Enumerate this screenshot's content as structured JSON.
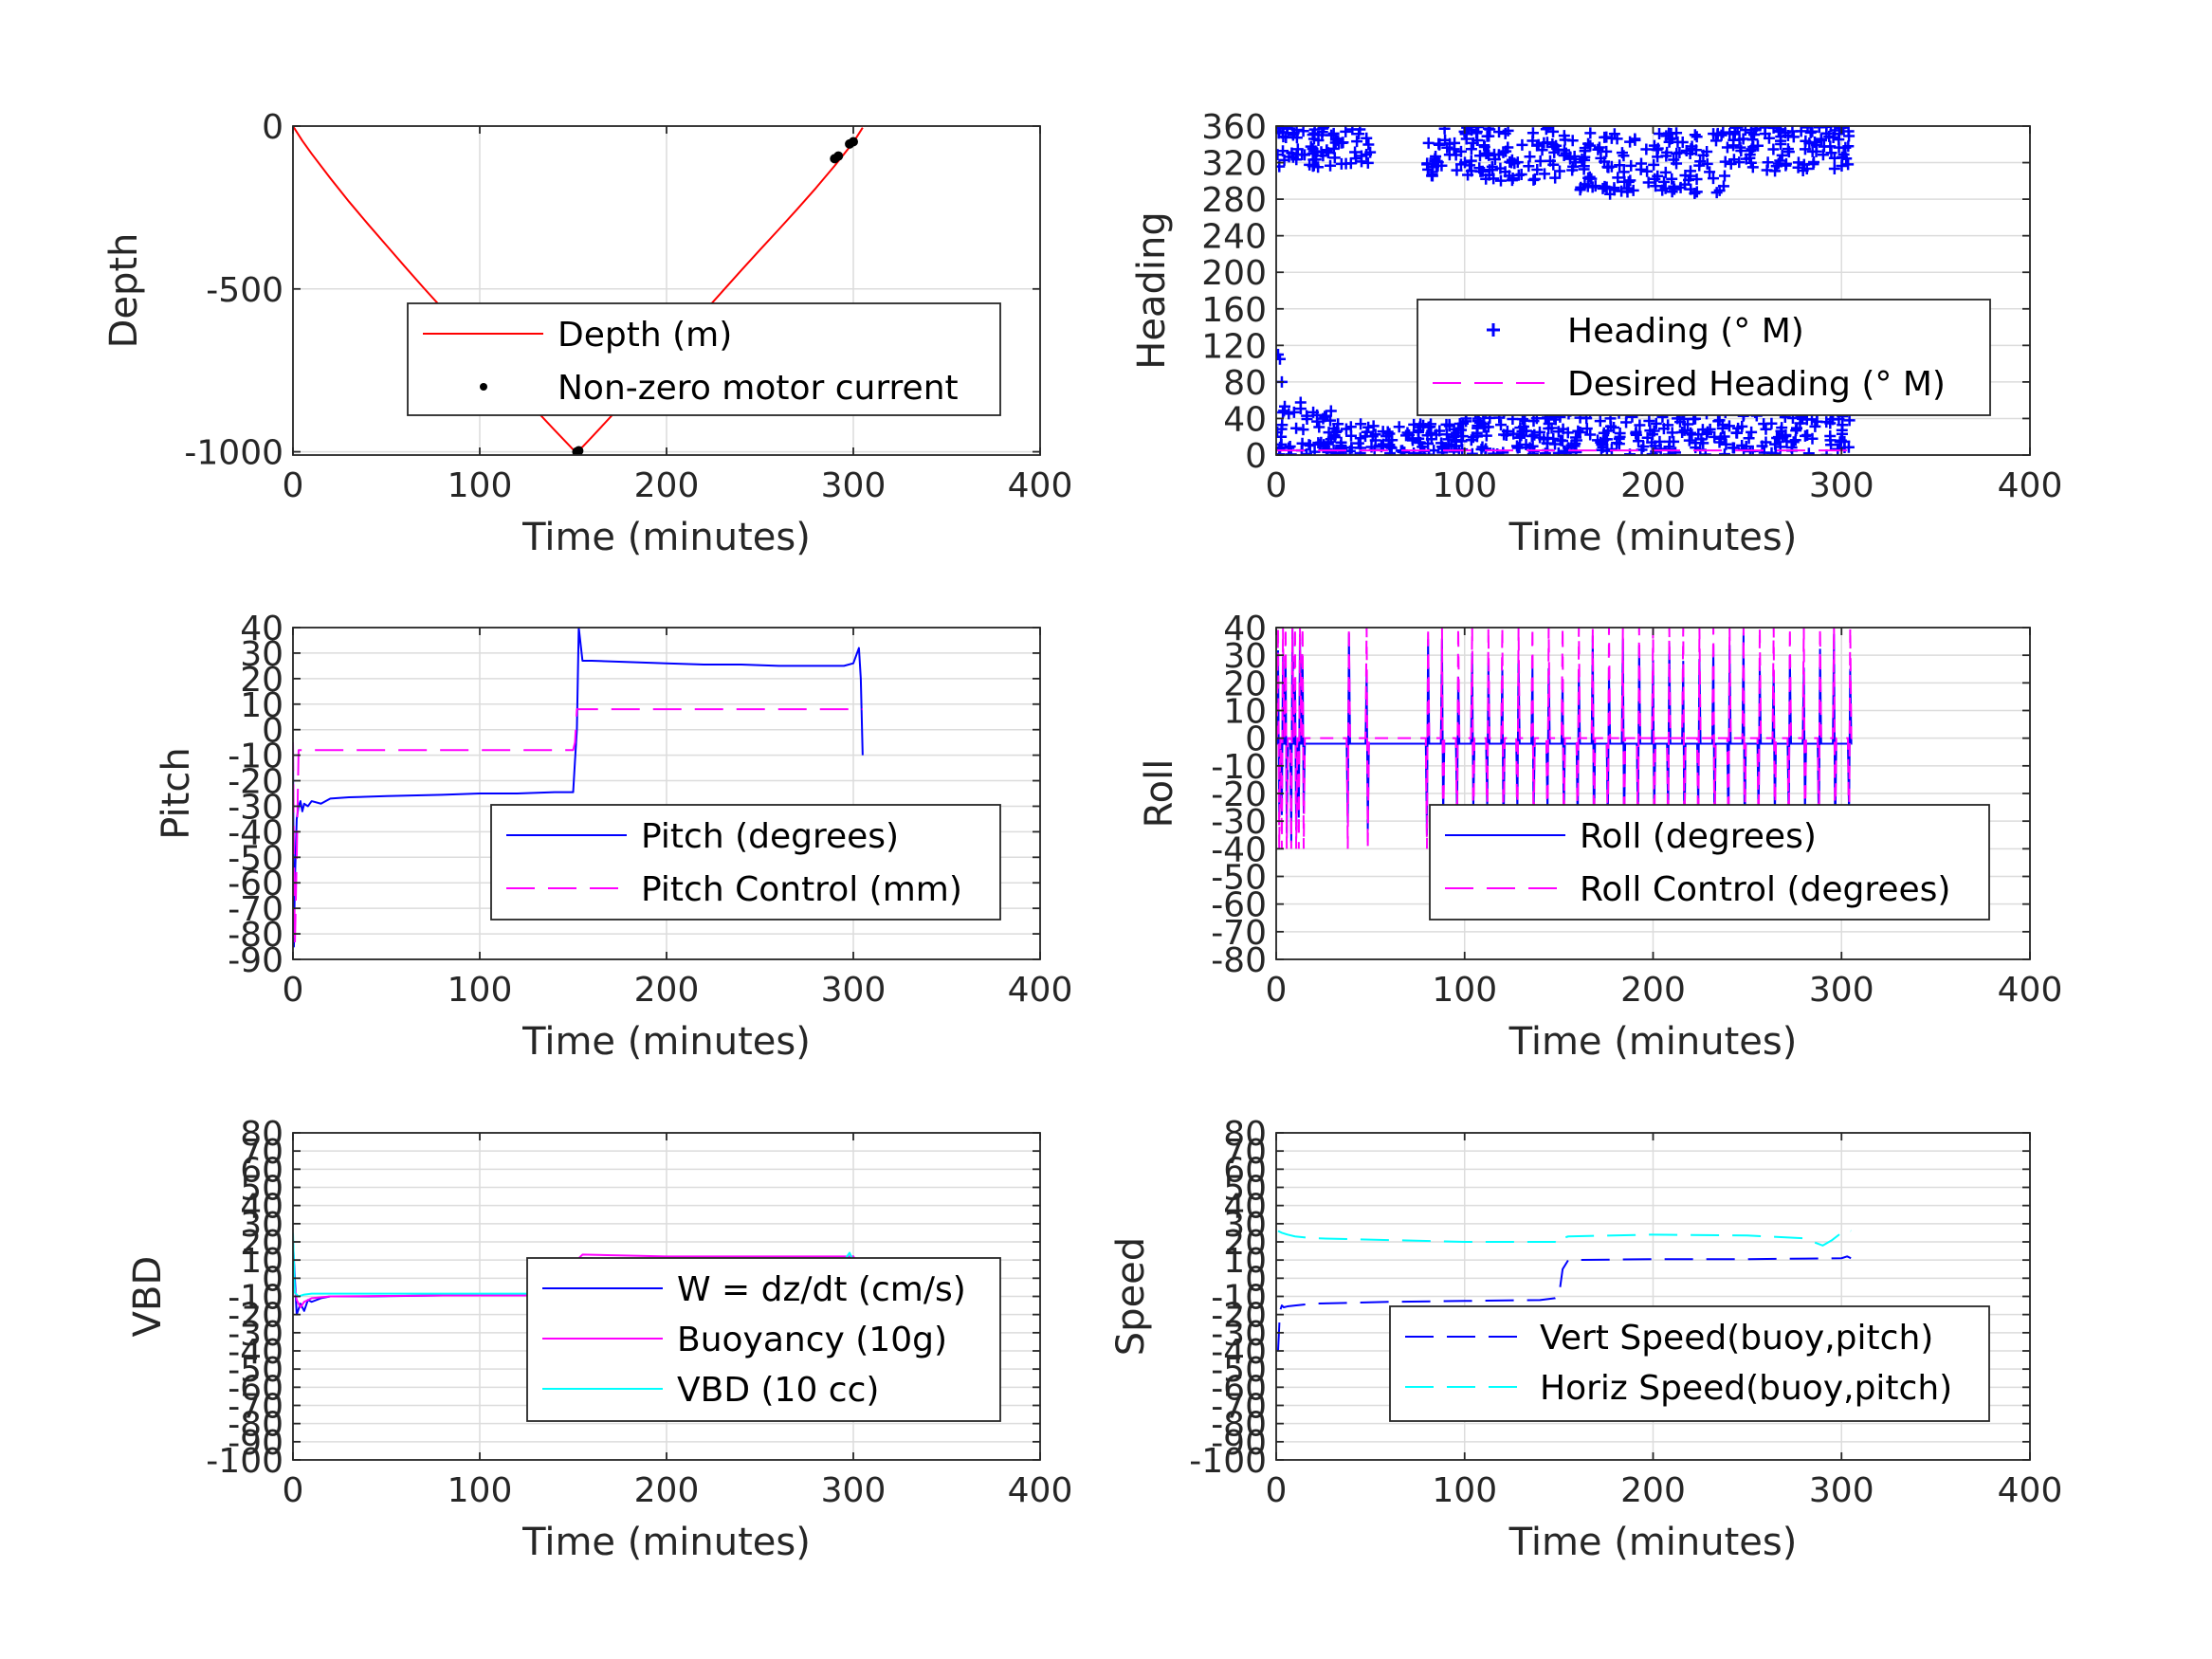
{
  "chart_data": [
    {
      "id": "depth",
      "type": "line",
      "xlabel": "Time (minutes)",
      "ylabel": "Depth",
      "xlim": [
        0,
        400
      ],
      "ylim": [
        -1010,
        0
      ],
      "xticks": [
        0,
        100,
        200,
        300,
        400
      ],
      "yticks": [
        0,
        -500,
        -1000
      ],
      "ytick_labels": [
        "0",
        "-500",
        "-1000"
      ],
      "grid": true,
      "legend_position": "center-right",
      "series": [
        {
          "name": "Depth (m)",
          "style": "solid",
          "color": "#ff0000",
          "x": [
            0,
            5,
            10,
            20,
            30,
            40,
            50,
            60,
            70,
            80,
            90,
            100,
            110,
            120,
            130,
            140,
            150,
            152,
            155,
            160,
            170,
            180,
            190,
            200,
            210,
            220,
            230,
            240,
            250,
            260,
            270,
            280,
            290,
            300,
            305
          ],
          "y": [
            0,
            -45,
            -85,
            -160,
            -232,
            -300,
            -366,
            -432,
            -497,
            -560,
            -623,
            -686,
            -748,
            -810,
            -872,
            -933,
            -993,
            -1000,
            -985,
            -955,
            -893,
            -829,
            -765,
            -700,
            -635,
            -571,
            -507,
            -443,
            -380,
            -318,
            -255,
            -190,
            -122,
            -50,
            -5
          ]
        },
        {
          "name": "Non-zero motor current",
          "style": "dots",
          "color": "#000000",
          "x": [
            152,
            153,
            290,
            292,
            298,
            300
          ],
          "y": [
            -1000,
            -997,
            -100,
            -92,
            -55,
            -48
          ]
        }
      ]
    },
    {
      "id": "heading",
      "type": "scatter",
      "xlabel": "Time (minutes)",
      "ylabel": "Heading",
      "xlim": [
        0,
        400
      ],
      "ylim": [
        0,
        360
      ],
      "xticks": [
        0,
        100,
        200,
        300,
        400
      ],
      "yticks": [
        0,
        40,
        80,
        120,
        160,
        200,
        240,
        280,
        320,
        360
      ],
      "ytick_labels": [
        "0",
        "40",
        "80",
        "120",
        "160",
        "200",
        "240",
        "280",
        "320",
        "360"
      ],
      "grid": true,
      "legend_position": "center-right",
      "series": [
        {
          "name": "Heading (° M)",
          "style": "plus",
          "color": "#0000ff",
          "bands": [
            {
              "x": [
                0,
                50
              ],
              "y": [
                315,
                360
              ]
            },
            {
              "x": [
                80,
                160
              ],
              "y": [
                300,
                360
              ]
            },
            {
              "x": [
                160,
                240
              ],
              "y": [
                285,
                355
              ]
            },
            {
              "x": [
                240,
                305
              ],
              "y": [
                310,
                360
              ]
            },
            {
              "x": [
                0,
                30
              ],
              "y": [
                0,
                60
              ]
            },
            {
              "x": [
                30,
                100
              ],
              "y": [
                0,
                35
              ]
            },
            {
              "x": [
                100,
                200
              ],
              "y": [
                0,
                55
              ]
            },
            {
              "x": [
                200,
                305
              ],
              "y": [
                0,
                60
              ]
            }
          ],
          "extra": [
            [
              1,
              110
            ],
            [
              2,
              105
            ],
            [
              3,
              80
            ],
            [
              150,
              60
            ],
            [
              290,
              75
            ]
          ]
        },
        {
          "name": "Desired Heading (° M)",
          "style": "dashed",
          "color": "#ff00ff",
          "x": [
            0,
            305
          ],
          "y": [
            5,
            5
          ]
        }
      ]
    },
    {
      "id": "pitch",
      "type": "line",
      "xlabel": "Time (minutes)",
      "ylabel": "Pitch",
      "xlim": [
        0,
        400
      ],
      "ylim": [
        -90,
        40
      ],
      "xticks": [
        0,
        100,
        200,
        300,
        400
      ],
      "yticks": [
        40,
        30,
        20,
        10,
        0,
        -10,
        -20,
        -30,
        -40,
        -50,
        -60,
        -70,
        -80,
        -90
      ],
      "ytick_labels": [
        "40",
        "30",
        "20",
        "10",
        "0",
        "-10",
        "-20",
        "-30",
        "-40",
        "-50",
        "-60",
        "-70",
        "-80",
        "-90"
      ],
      "grid": true,
      "legend_position": "bottom-right",
      "series": [
        {
          "name": "Pitch (degrees)",
          "style": "solid",
          "color": "#0000ff",
          "x": [
            0,
            0.5,
            1,
            2,
            3,
            4,
            5,
            6,
            8,
            10,
            15,
            20,
            30,
            50,
            80,
            100,
            120,
            140,
            150,
            151,
            152,
            153,
            155,
            160,
            180,
            200,
            220,
            240,
            260,
            280,
            295,
            300,
            303,
            304,
            305
          ],
          "y": [
            -5,
            -85,
            -60,
            -35,
            -30,
            -28,
            -32,
            -29,
            -30,
            -28,
            -29,
            -27,
            -26.5,
            -26,
            -25.5,
            -25,
            -25,
            -24.5,
            -24.5,
            -12,
            0,
            40,
            27,
            27,
            26.5,
            26,
            25.5,
            25.5,
            25,
            25,
            25,
            26,
            32,
            20,
            -10
          ]
        },
        {
          "name": "Pitch Control (mm)",
          "style": "dashed",
          "color": "#ff00ff",
          "x": [
            0,
            1,
            2,
            3,
            150,
            151,
            152,
            305
          ],
          "y": [
            -5,
            -85,
            -50,
            -8,
            -8,
            -5,
            8,
            8
          ]
        }
      ]
    },
    {
      "id": "roll",
      "type": "line",
      "xlabel": "Time (minutes)",
      "ylabel": "Roll",
      "xlim": [
        0,
        400
      ],
      "ylim": [
        -80,
        40
      ],
      "xticks": [
        0,
        100,
        200,
        300,
        400
      ],
      "yticks": [
        40,
        30,
        20,
        10,
        0,
        -10,
        -20,
        -30,
        -40,
        -50,
        -60,
        -70,
        -80
      ],
      "ytick_labels": [
        "40",
        "30",
        "20",
        "10",
        "0",
        "-10",
        "-20",
        "-30",
        "-40",
        "-50",
        "-60",
        "-70",
        "-80"
      ],
      "grid": true,
      "legend_position": "bottom-right",
      "turn_times": [
        1,
        3,
        5,
        8,
        10,
        12,
        14,
        38,
        48,
        80,
        88,
        96,
        104,
        112,
        120,
        128,
        136,
        144,
        152,
        160,
        168,
        176,
        184,
        192,
        200,
        208,
        216,
        224,
        232,
        240,
        248,
        256,
        264,
        272,
        280,
        288,
        296,
        304
      ],
      "series": [
        {
          "name": "Roll (degrees)",
          "style": "solid",
          "color": "#0000ff",
          "baseline": -2,
          "range": [
            -40,
            40
          ]
        },
        {
          "name": "Roll Control (degrees)",
          "style": "dashed",
          "color": "#ff00ff",
          "baseline": 0,
          "range": [
            -40,
            40
          ]
        }
      ]
    },
    {
      "id": "vbd",
      "type": "line",
      "xlabel": "Time (minutes)",
      "ylabel": "VBD",
      "xlim": [
        0,
        400
      ],
      "ylim": [
        -100,
        80
      ],
      "xticks": [
        0,
        100,
        200,
        300,
        400
      ],
      "yticks": [
        80,
        70,
        60,
        50,
        40,
        30,
        20,
        10,
        0,
        -10,
        -20,
        -30,
        -40,
        -50,
        -60,
        -70,
        -80,
        -90,
        -100
      ],
      "ytick_labels": [
        "80",
        "70",
        "60",
        "50",
        "40",
        "30",
        "20",
        "10",
        "0",
        "-10",
        "-20",
        "-30",
        "-40",
        "-50",
        "-60",
        "-70",
        "-80",
        "-90",
        "-100"
      ],
      "grid": true,
      "legend_position": "center-right",
      "series": [
        {
          "name": "W = dz/dt (cm/s)",
          "style": "solid",
          "color": "#0000ff",
          "x": [
            0,
            2,
            4,
            6,
            8,
            10,
            15,
            20,
            40,
            80,
            120,
            148,
            150,
            152,
            155,
            180,
            220,
            260,
            295,
            300,
            303,
            305
          ],
          "y": [
            20,
            -20,
            -14,
            -18,
            -12,
            -13,
            -11,
            -10,
            -10,
            -9.5,
            -9.5,
            -9.5,
            -5,
            10,
            11,
            10.5,
            10.5,
            10.5,
            10.5,
            12,
            6,
            8
          ]
        },
        {
          "name": "Buoyancy (10g)",
          "style": "solid",
          "color": "#ff00ff",
          "x": [
            0,
            2,
            4,
            6,
            10,
            20,
            80,
            148,
            150,
            152,
            155,
            200,
            300,
            303,
            305
          ],
          "y": [
            0,
            -12,
            -16,
            -13,
            -11,
            -10,
            -9.5,
            -9.5,
            -4,
            10,
            13,
            12,
            12,
            6,
            8
          ]
        },
        {
          "name": "VBD (10 cc)",
          "style": "solid",
          "color": "#00ffff",
          "x": [
            0,
            1,
            3,
            6,
            10,
            20,
            80,
            148,
            150,
            152,
            155,
            200,
            295,
            298,
            300,
            305
          ],
          "y": [
            25,
            -8,
            -10,
            -9,
            -8.5,
            -8.5,
            -8.5,
            -8.5,
            -6,
            9,
            9.5,
            9.5,
            9.5,
            14,
            9.5,
            9.5
          ]
        }
      ]
    },
    {
      "id": "speed",
      "type": "line",
      "xlabel": "Time (minutes)",
      "ylabel": "Speed",
      "xlim": [
        0,
        400
      ],
      "ylim": [
        -100,
        80
      ],
      "xticks": [
        0,
        100,
        200,
        300,
        400
      ],
      "yticks": [
        80,
        70,
        60,
        50,
        40,
        30,
        20,
        10,
        0,
        -10,
        -20,
        -30,
        -40,
        -50,
        -60,
        -70,
        -80,
        -90,
        -100
      ],
      "ytick_labels": [
        "80",
        "70",
        "60",
        "50",
        "40",
        "30",
        "20",
        "10",
        "0",
        "-10",
        "-20",
        "-30",
        "-40",
        "-50",
        "-60",
        "-70",
        "-80",
        "-90",
        "-100"
      ],
      "grid": true,
      "legend_position": "bottom-right",
      "series": [
        {
          "name": "Vert Speed(buoy,pitch)",
          "style": "dashed",
          "color": "#0000ff",
          "x": [
            1,
            2,
            3,
            4,
            6,
            10,
            20,
            60,
            100,
            140,
            148,
            150,
            152,
            155,
            200,
            250,
            300,
            303,
            305
          ],
          "y": [
            -40,
            -18,
            -15,
            -16,
            -15.5,
            -15,
            -14,
            -13,
            -12.5,
            -12,
            -11,
            -10,
            5,
            10,
            10.5,
            10.5,
            11,
            12,
            11
          ]
        },
        {
          "name": "Horiz Speed(buoy,pitch)",
          "style": "dashed",
          "color": "#00ffff",
          "x": [
            1,
            3,
            6,
            10,
            20,
            60,
            100,
            148,
            150,
            152,
            155,
            200,
            250,
            280,
            290,
            295,
            300,
            303,
            305
          ],
          "y": [
            26,
            25,
            24,
            23,
            22,
            21,
            20,
            20,
            19,
            22,
            23,
            24,
            23.5,
            22,
            18,
            21,
            25,
            27,
            26
          ]
        }
      ]
    }
  ]
}
